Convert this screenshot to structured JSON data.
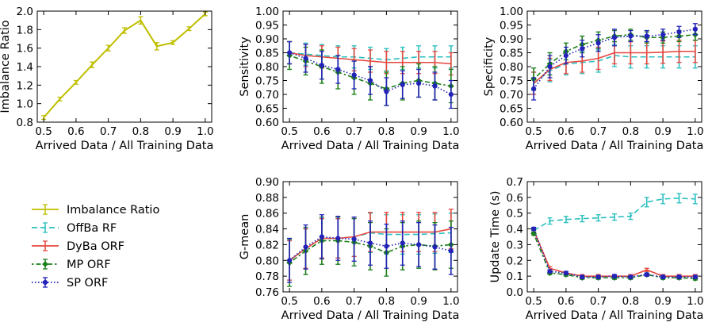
{
  "chart_data": [
    {
      "type": "line",
      "xlabel": "Arrived Data / All Training Data",
      "ylabel": "Imbalance Ratio",
      "xlim": [
        0.48,
        1.02
      ],
      "ylim": [
        0.8,
        2.0
      ],
      "xticks": [
        0.5,
        0.6,
        0.7,
        0.8,
        0.9,
        1.0
      ],
      "xtick_labels": [
        "0.5",
        "0.6",
        "0.7",
        "0.8",
        "0.9",
        "1.0"
      ],
      "yticks": [
        0.8,
        1.0,
        1.2,
        1.4,
        1.6,
        1.8,
        2.0
      ],
      "ytick_labels": [
        "0.8",
        "1.0",
        "1.2",
        "1.4",
        "1.6",
        "1.8",
        "2.0"
      ],
      "x": [
        0.5,
        0.55,
        0.6,
        0.65,
        0.7,
        0.75,
        0.8,
        0.85,
        0.9,
        0.95,
        1.0
      ],
      "series": [
        {
          "name": "Imbalance Ratio",
          "color": "#bfbf00",
          "dash": "solid",
          "marker": "none",
          "values": [
            0.85,
            1.05,
            1.23,
            1.42,
            1.6,
            1.79,
            1.9,
            1.62,
            1.66,
            1.81,
            1.97
          ],
          "err": [
            0.02,
            0.02,
            0.02,
            0.03,
            0.03,
            0.03,
            0.04,
            0.04,
            0.02,
            0.02,
            0.02
          ]
        }
      ]
    },
    {
      "type": "line",
      "xlabel": "Arrived Data / All Training Data",
      "ylabel": "Sensitivity",
      "xlim": [
        0.48,
        1.02
      ],
      "ylim": [
        0.6,
        1.0
      ],
      "xticks": [
        0.5,
        0.6,
        0.7,
        0.8,
        0.9,
        1.0
      ],
      "xtick_labels": [
        "0.5",
        "0.6",
        "0.7",
        "0.8",
        "0.9",
        "1.0"
      ],
      "yticks": [
        0.6,
        0.65,
        0.7,
        0.75,
        0.8,
        0.85,
        0.9,
        0.95,
        1.0
      ],
      "ytick_labels": [
        "0.60",
        "0.65",
        "0.70",
        "0.75",
        "0.80",
        "0.85",
        "0.90",
        "0.95",
        "1.00"
      ],
      "x": [
        0.5,
        0.55,
        0.6,
        0.65,
        0.7,
        0.75,
        0.8,
        0.85,
        0.9,
        0.95,
        1.0
      ],
      "series": [
        {
          "name": "OffBa RF",
          "color": "#2bbfbf",
          "dash": "dashed",
          "marker": "none",
          "values": [
            0.85,
            0.845,
            0.84,
            0.835,
            0.835,
            0.83,
            0.825,
            0.83,
            0.835,
            0.835,
            0.835
          ],
          "err": [
            0.04,
            0.04,
            0.04,
            0.04,
            0.04,
            0.04,
            0.04,
            0.04,
            0.04,
            0.04,
            0.04
          ]
        },
        {
          "name": "DyBa ORF",
          "color": "#e8473e",
          "dash": "solid",
          "marker": "none",
          "values": [
            0.85,
            0.84,
            0.835,
            0.83,
            0.825,
            0.82,
            0.815,
            0.815,
            0.815,
            0.815,
            0.81
          ],
          "err": [
            0.04,
            0.04,
            0.04,
            0.04,
            0.04,
            0.04,
            0.04,
            0.04,
            0.04,
            0.04,
            0.04
          ]
        },
        {
          "name": "MP ORF",
          "color": "#1a7f1a",
          "dash": "dotdash",
          "marker": "diamond",
          "values": [
            0.84,
            0.82,
            0.8,
            0.78,
            0.76,
            0.74,
            0.72,
            0.74,
            0.75,
            0.74,
            0.73
          ],
          "err": [
            0.05,
            0.05,
            0.06,
            0.06,
            0.06,
            0.06,
            0.06,
            0.06,
            0.06,
            0.06,
            0.06
          ]
        },
        {
          "name": "SP ORF",
          "color": "#2323b8",
          "dash": "dotted",
          "marker": "circle",
          "values": [
            0.85,
            0.83,
            0.805,
            0.79,
            0.77,
            0.75,
            0.71,
            0.735,
            0.74,
            0.73,
            0.7
          ],
          "err": [
            0.04,
            0.05,
            0.05,
            0.05,
            0.05,
            0.05,
            0.05,
            0.05,
            0.05,
            0.05,
            0.05
          ]
        }
      ]
    },
    {
      "type": "line",
      "xlabel": "Arrived Data / All Training Data",
      "ylabel": "Specificity",
      "xlim": [
        0.48,
        1.02
      ],
      "ylim": [
        0.6,
        1.0
      ],
      "xticks": [
        0.5,
        0.6,
        0.7,
        0.8,
        0.9,
        1.0
      ],
      "xtick_labels": [
        "0.5",
        "0.6",
        "0.7",
        "0.8",
        "0.9",
        "1.0"
      ],
      "yticks": [
        0.6,
        0.65,
        0.7,
        0.75,
        0.8,
        0.85,
        0.9,
        0.95,
        1.0
      ],
      "ytick_labels": [
        "0.60",
        "0.65",
        "0.70",
        "0.75",
        "0.80",
        "0.85",
        "0.90",
        "0.95",
        "1.00"
      ],
      "x": [
        0.5,
        0.55,
        0.6,
        0.65,
        0.7,
        0.75,
        0.8,
        0.85,
        0.9,
        0.95,
        1.0
      ],
      "series": [
        {
          "name": "OffBa RF",
          "color": "#2bbfbf",
          "dash": "dashed",
          "marker": "none",
          "values": [
            0.74,
            0.785,
            0.81,
            0.815,
            0.82,
            0.84,
            0.835,
            0.835,
            0.835,
            0.835,
            0.835
          ],
          "err": [
            0.04,
            0.04,
            0.04,
            0.04,
            0.04,
            0.04,
            0.04,
            0.04,
            0.04,
            0.04,
            0.04
          ]
        },
        {
          "name": "DyBa ORF",
          "color": "#e8473e",
          "dash": "solid",
          "marker": "none",
          "values": [
            0.74,
            0.79,
            0.815,
            0.82,
            0.83,
            0.85,
            0.85,
            0.85,
            0.852,
            0.855,
            0.855
          ],
          "err": [
            0.04,
            0.04,
            0.04,
            0.04,
            0.04,
            0.04,
            0.04,
            0.04,
            0.04,
            0.04,
            0.04
          ]
        },
        {
          "name": "MP ORF",
          "color": "#1a7f1a",
          "dash": "dotdash",
          "marker": "diamond",
          "values": [
            0.755,
            0.81,
            0.855,
            0.88,
            0.895,
            0.91,
            0.915,
            0.905,
            0.905,
            0.91,
            0.915
          ],
          "err": [
            0.04,
            0.04,
            0.03,
            0.03,
            0.03,
            0.02,
            0.02,
            0.02,
            0.02,
            0.02,
            0.02
          ]
        },
        {
          "name": "SP ORF",
          "color": "#2323b8",
          "dash": "dotted",
          "marker": "circle",
          "values": [
            0.72,
            0.8,
            0.84,
            0.865,
            0.885,
            0.905,
            0.91,
            0.91,
            0.915,
            0.925,
            0.935
          ],
          "err": [
            0.04,
            0.04,
            0.03,
            0.03,
            0.03,
            0.03,
            0.02,
            0.02,
            0.02,
            0.02,
            0.02
          ]
        }
      ]
    },
    {
      "type": "line",
      "xlabel": "Arrived Data / All Training Data",
      "ylabel": "G-mean",
      "xlim": [
        0.48,
        1.02
      ],
      "ylim": [
        0.76,
        0.9
      ],
      "xticks": [
        0.5,
        0.6,
        0.7,
        0.8,
        0.9,
        1.0
      ],
      "xtick_labels": [
        "0.5",
        "0.6",
        "0.7",
        "0.8",
        "0.9",
        "1.0"
      ],
      "yticks": [
        0.76,
        0.78,
        0.8,
        0.82,
        0.84,
        0.86,
        0.88,
        0.9
      ],
      "ytick_labels": [
        "0.76",
        "0.78",
        "0.80",
        "0.82",
        "0.84",
        "0.86",
        "0.88",
        "0.90"
      ],
      "x": [
        0.5,
        0.55,
        0.6,
        0.65,
        0.7,
        0.75,
        0.8,
        0.85,
        0.9,
        0.95,
        1.0
      ],
      "series": [
        {
          "name": "OffBa RF",
          "color": "#2bbfbf",
          "dash": "dashed",
          "marker": "none",
          "values": [
            0.8,
            0.815,
            0.828,
            0.828,
            0.83,
            0.835,
            0.833,
            0.833,
            0.833,
            0.834,
            0.835
          ],
          "err": [
            0.025,
            0.025,
            0.025,
            0.025,
            0.025,
            0.025,
            0.025,
            0.025,
            0.025,
            0.025,
            0.025
          ]
        },
        {
          "name": "DyBa ORF",
          "color": "#e8473e",
          "dash": "solid",
          "marker": "none",
          "values": [
            0.8,
            0.815,
            0.828,
            0.828,
            0.83,
            0.836,
            0.836,
            0.836,
            0.836,
            0.836,
            0.84
          ],
          "err": [
            0.025,
            0.025,
            0.025,
            0.025,
            0.025,
            0.025,
            0.025,
            0.025,
            0.025,
            0.025,
            0.025
          ]
        },
        {
          "name": "MP ORF",
          "color": "#1a7f1a",
          "dash": "dotdash",
          "marker": "diamond",
          "values": [
            0.797,
            0.812,
            0.825,
            0.825,
            0.823,
            0.818,
            0.81,
            0.818,
            0.82,
            0.818,
            0.82
          ],
          "err": [
            0.03,
            0.03,
            0.03,
            0.03,
            0.03,
            0.03,
            0.03,
            0.03,
            0.03,
            0.03,
            0.03
          ]
        },
        {
          "name": "SP ORF",
          "color": "#2323b8",
          "dash": "dotted",
          "marker": "circle",
          "values": [
            0.8,
            0.817,
            0.83,
            0.828,
            0.827,
            0.822,
            0.818,
            0.822,
            0.82,
            0.817,
            0.812
          ],
          "err": [
            0.028,
            0.028,
            0.028,
            0.028,
            0.028,
            0.028,
            0.028,
            0.028,
            0.028,
            0.028,
            0.03
          ]
        }
      ]
    },
    {
      "type": "line",
      "xlabel": "Arrived Data / All Training Data",
      "ylabel": "Update Time (s)",
      "xlim": [
        0.48,
        1.02
      ],
      "ylim": [
        0.0,
        0.7
      ],
      "xticks": [
        0.5,
        0.6,
        0.7,
        0.8,
        0.9,
        1.0
      ],
      "xtick_labels": [
        "0.5",
        "0.6",
        "0.7",
        "0.8",
        "0.9",
        "1.0"
      ],
      "yticks": [
        0.0,
        0.1,
        0.2,
        0.3,
        0.4,
        0.5,
        0.6,
        0.7
      ],
      "ytick_labels": [
        "0.0",
        "0.1",
        "0.2",
        "0.3",
        "0.4",
        "0.5",
        "0.6",
        "0.7"
      ],
      "x": [
        0.5,
        0.55,
        0.6,
        0.65,
        0.7,
        0.75,
        0.8,
        0.85,
        0.9,
        0.95,
        1.0
      ],
      "series": [
        {
          "name": "OffBa RF",
          "color": "#2bbfbf",
          "dash": "dashed",
          "marker": "none",
          "values": [
            0.39,
            0.45,
            0.46,
            0.465,
            0.47,
            0.475,
            0.48,
            0.57,
            0.59,
            0.595,
            0.59
          ],
          "err": [
            0.02,
            0.02,
            0.02,
            0.02,
            0.02,
            0.02,
            0.02,
            0.03,
            0.03,
            0.03,
            0.03
          ]
        },
        {
          "name": "DyBa ORF",
          "color": "#e8473e",
          "dash": "solid",
          "marker": "none",
          "values": [
            0.39,
            0.15,
            0.12,
            0.1,
            0.1,
            0.1,
            0.1,
            0.14,
            0.1,
            0.1,
            0.1
          ],
          "err": [
            0.01,
            0.01,
            0.01,
            0.01,
            0.01,
            0.01,
            0.01,
            0.01,
            0.01,
            0.01,
            0.01
          ]
        },
        {
          "name": "MP ORF",
          "color": "#1a7f1a",
          "dash": "dotdash",
          "marker": "diamond",
          "values": [
            0.37,
            0.12,
            0.11,
            0.09,
            0.09,
            0.09,
            0.09,
            0.11,
            0.09,
            0.09,
            0.085
          ],
          "err": [
            0.01,
            0.01,
            0.01,
            0.01,
            0.01,
            0.01,
            0.01,
            0.01,
            0.01,
            0.01,
            0.01
          ]
        },
        {
          "name": "SP ORF",
          "color": "#2323b8",
          "dash": "dotted",
          "marker": "circle",
          "values": [
            0.4,
            0.13,
            0.12,
            0.095,
            0.095,
            0.1,
            0.095,
            0.11,
            0.095,
            0.095,
            0.095
          ],
          "err": [
            0.01,
            0.01,
            0.01,
            0.01,
            0.01,
            0.01,
            0.01,
            0.01,
            0.01,
            0.01,
            0.01
          ]
        }
      ]
    }
  ],
  "legend": {
    "placement": "left, bottom row",
    "items": [
      {
        "label": "Imbalance Ratio",
        "color": "#bfbf00",
        "dash": "solid",
        "marker": "none"
      },
      {
        "label": "OffBa RF",
        "color": "#2bbfbf",
        "dash": "dashed",
        "marker": "none"
      },
      {
        "label": "DyBa ORF",
        "color": "#e8473e",
        "dash": "solid",
        "marker": "none"
      },
      {
        "label": "MP ORF",
        "color": "#1a7f1a",
        "dash": "dotdash",
        "marker": "diamond"
      },
      {
        "label": "SP ORF",
        "color": "#2323b8",
        "dash": "dotted",
        "marker": "circle"
      }
    ]
  }
}
